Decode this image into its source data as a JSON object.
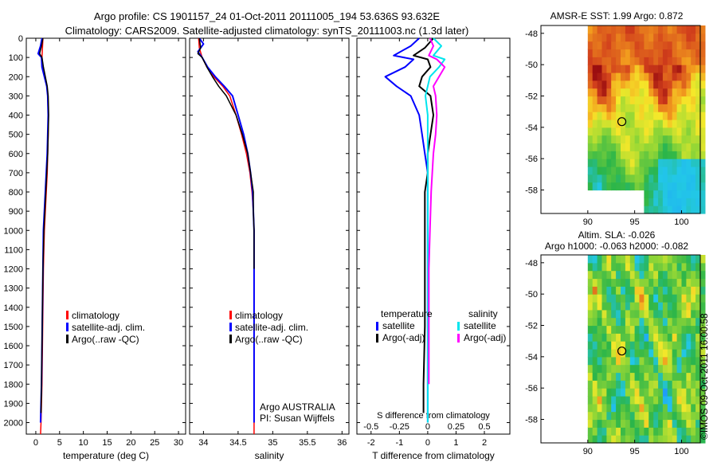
{
  "header": {
    "title_line1": "Argo profile: CS 1901157_24 01-Oct-2011 20111005_194 53.636S 93.632E",
    "title_line2": "Climatology: CARS2009. Satellite-adjusted climatology: synTS_20111003.nc (1.3d later)"
  },
  "colors": {
    "climatology": "#ff0000",
    "satellite_clim": "#0000ff",
    "argo": "#000000",
    "sal_satellite": "#00e5ee",
    "sal_argo": "#ff00ff"
  },
  "chart_data": [
    {
      "id": "temperature",
      "type": "line",
      "xlabel": "temperature (deg C)",
      "ylabel": "",
      "xlim": [
        -2,
        31.5
      ],
      "ylim": [
        2060,
        0
      ],
      "xticks": [
        0,
        5,
        10,
        15,
        20,
        25,
        30
      ],
      "yticks": [
        0,
        100,
        200,
        300,
        400,
        500,
        600,
        700,
        800,
        900,
        1000,
        1100,
        1200,
        1300,
        1400,
        1500,
        1600,
        1700,
        1800,
        1900,
        2000
      ],
      "legend": [
        "climatology",
        "satellite-adj. clim.",
        "Argo(..raw -QC)"
      ],
      "series": [
        {
          "name": "climatology",
          "color": "#ff0000",
          "width": 1.5,
          "x": [
            1.5,
            1.4,
            1.3,
            1.5,
            1.9,
            2.3,
            2.5,
            2.6,
            2.6,
            2.5,
            2.4,
            2.2,
            2.0,
            1.8,
            1.6,
            1.5,
            1.4,
            1.3,
            1.2,
            1.1,
            1.0
          ],
          "y": [
            0,
            50,
            100,
            150,
            200,
            250,
            300,
            400,
            500,
            600,
            700,
            800,
            900,
            1000,
            1200,
            1400,
            1600,
            1800,
            1900,
            2000,
            2060
          ]
        },
        {
          "name": "satellite-adj. clim.",
          "color": "#0000ff",
          "width": 2,
          "x": [
            1.3,
            1.0,
            0.5,
            1.2,
            1.3,
            1.8,
            2.3,
            2.5,
            2.6,
            2.5,
            2.4,
            2.2,
            2.0,
            1.8,
            1.6,
            1.5,
            1.4,
            1.3,
            1.2,
            1.1,
            1.0
          ],
          "y": [
            0,
            40,
            80,
            100,
            150,
            200,
            250,
            300,
            400,
            500,
            600,
            700,
            800,
            900,
            1000,
            1200,
            1400,
            1600,
            1800,
            1900,
            2000
          ]
        },
        {
          "name": "Argo(..raw -QC)",
          "color": "#000000",
          "width": 1.5,
          "x": [
            1.5,
            1.2,
            0.8,
            1.3,
            1.6,
            2.0,
            2.4,
            2.6,
            2.7,
            2.6,
            2.5,
            2.3,
            2.1,
            1.9,
            1.7,
            1.5,
            1.4,
            1.3,
            1.2,
            1.1
          ],
          "y": [
            0,
            40,
            80,
            100,
            150,
            200,
            250,
            300,
            400,
            500,
            600,
            700,
            800,
            900,
            1000,
            1200,
            1400,
            1600,
            1800,
            1950
          ]
        }
      ]
    },
    {
      "id": "salinity",
      "type": "line",
      "xlabel": "salinity",
      "ylabel": "",
      "xlim": [
        33.8,
        36.1
      ],
      "ylim": [
        2060,
        0
      ],
      "xticks": [
        34,
        34.5,
        35,
        35.5,
        36
      ],
      "xticklabels": [
        "34",
        "34.5",
        "35",
        "35.5",
        "36"
      ],
      "yticks": [
        0,
        100,
        200,
        300,
        400,
        500,
        600,
        700,
        800,
        900,
        1000,
        1100,
        1200,
        1300,
        1400,
        1500,
        1600,
        1700,
        1800,
        1900,
        2000
      ],
      "legend": [
        "climatology",
        "satellite-adj. clim.",
        "Argo(..raw -QC)"
      ],
      "annotation": [
        "Argo AUSTRALIA",
        "PI: Susan Wijffels"
      ],
      "series": [
        {
          "name": "climatology",
          "color": "#ff0000",
          "width": 1.5,
          "x": [
            33.93,
            33.94,
            33.98,
            34.05,
            34.15,
            34.28,
            34.38,
            34.47,
            34.55,
            34.62,
            34.67,
            34.7,
            34.72,
            34.73,
            34.73,
            34.73,
            34.73,
            34.73,
            34.73
          ],
          "y": [
            0,
            50,
            100,
            150,
            200,
            250,
            300,
            400,
            500,
            600,
            700,
            800,
            900,
            1000,
            1200,
            1400,
            1600,
            1800,
            2060
          ]
        },
        {
          "name": "satellite-adj. clim.",
          "color": "#0000ff",
          "width": 2,
          "x": [
            33.94,
            34.0,
            33.92,
            33.98,
            34.06,
            34.17,
            34.3,
            34.42,
            34.5,
            34.58,
            34.64,
            34.68,
            34.71,
            34.72,
            34.73,
            34.73,
            34.73,
            34.73,
            34.73
          ],
          "y": [
            0,
            30,
            70,
            100,
            150,
            200,
            250,
            300,
            400,
            500,
            600,
            700,
            800,
            900,
            1000,
            1200,
            1400,
            1600,
            2000
          ]
        },
        {
          "name": "Argo(..raw -QC)",
          "color": "#000000",
          "width": 1.5,
          "x": [
            33.94,
            33.96,
            33.92,
            33.98,
            34.05,
            34.13,
            34.22,
            34.33,
            34.47,
            34.56,
            34.64,
            34.68,
            34.72,
            34.72,
            34.73,
            34.73
          ],
          "y": [
            0,
            50,
            80,
            100,
            150,
            200,
            250,
            300,
            400,
            500,
            600,
            700,
            800,
            900,
            1000,
            1200
          ]
        }
      ]
    },
    {
      "id": "differences",
      "type": "line",
      "xlabel": "T difference from climatology",
      "xlabel_top": "S difference from climatology",
      "xlim": [
        -2.5,
        2.9
      ],
      "ylim": [
        2060,
        0
      ],
      "xticks": [
        -2,
        -1,
        0,
        1,
        2
      ],
      "xticks_top": [
        -0.5,
        -0.25,
        0,
        0.25,
        0.5
      ],
      "xticks_top_labels": [
        "-0.5",
        "-0.25",
        "0",
        "0.25",
        "0.5"
      ],
      "yticks": [
        0,
        100,
        200,
        300,
        400,
        500,
        600,
        700,
        800,
        900,
        1000,
        1100,
        1200,
        1300,
        1400,
        1500,
        1600,
        1700,
        1800,
        1900,
        2000
      ],
      "legend": {
        "temperature_title": "temperature",
        "salinity_title": "salinity",
        "temperature": [
          "satellite",
          "Argo(-adj)"
        ],
        "salinity": [
          "satellite",
          "Argo(-adj)"
        ]
      },
      "series": [
        {
          "name": "T satellite",
          "color": "#0000ff",
          "width": 2,
          "x": [
            -0.3,
            -0.6,
            -1.2,
            -0.5,
            -0.8,
            -1.5,
            -1.1,
            -0.6,
            -0.3,
            -0.2,
            -0.1,
            0,
            0,
            0,
            0,
            0,
            0,
            0
          ],
          "y": [
            0,
            40,
            90,
            110,
            150,
            200,
            250,
            300,
            400,
            500,
            600,
            700,
            800,
            1000,
            1200,
            1500,
            1800,
            2000
          ]
        },
        {
          "name": "T Argo(-adj)",
          "color": "#000000",
          "width": 2,
          "x": [
            0.2,
            -0.1,
            -0.5,
            0,
            0.1,
            -0.2,
            -0.3,
            0.1,
            0.2,
            0.1,
            0,
            0,
            -0.1,
            -0.1,
            -0.1,
            -0.1,
            -0.15,
            -0.15
          ],
          "y": [
            0,
            50,
            90,
            110,
            150,
            200,
            250,
            300,
            400,
            500,
            600,
            700,
            800,
            1000,
            1200,
            1500,
            1800,
            1950
          ]
        },
        {
          "name": "S satellite",
          "color": "#00e5ee",
          "width": 2,
          "x": [
            0.05,
            0.12,
            0.05,
            0.15,
            0.1,
            0.02,
            0,
            -0.02,
            0,
            0,
            0,
            0,
            0,
            0,
            0,
            0,
            0,
            0
          ],
          "y": [
            0,
            40,
            90,
            110,
            150,
            200,
            250,
            300,
            400,
            500,
            600,
            700,
            800,
            1000,
            1200,
            1500,
            1800,
            2000
          ]
        },
        {
          "name": "S Argo(-adj)",
          "color": "#ff00ff",
          "width": 2,
          "x": [
            0.02,
            0.05,
            0.01,
            0.08,
            0.15,
            0.1,
            0.05,
            0.07,
            0.08,
            0.07,
            0.05,
            0.04,
            0.03,
            0.02,
            0.01,
            0.01,
            0.01
          ],
          "y": [
            0,
            40,
            90,
            110,
            150,
            200,
            250,
            300,
            400,
            500,
            600,
            700,
            800,
            1000,
            1200,
            1500,
            1800
          ]
        }
      ]
    },
    {
      "id": "sst_map",
      "type": "heatmap",
      "title": "AMSR-E SST: 1.99 Argo: 0.872",
      "xlim": [
        85,
        102
      ],
      "ylim": [
        -59.5,
        -47.5
      ],
      "xticks": [
        90,
        95,
        100
      ],
      "yticks": [
        -48,
        -50,
        -52,
        -54,
        -56,
        -58
      ],
      "marker": {
        "lon": 93.632,
        "lat": -53.636
      }
    },
    {
      "id": "sla_map",
      "type": "heatmap",
      "title_line1": "Altim. SLA: -0.026",
      "title_line2": "Argo h1000: -0.063 h2000: -0.082",
      "xlim": [
        85,
        102
      ],
      "ylim": [
        -59.5,
        -47.5
      ],
      "xticks": [
        90,
        95,
        100
      ],
      "yticks": [
        -48,
        -50,
        -52,
        -54,
        -56,
        -58
      ],
      "marker": {
        "lon": 93.632,
        "lat": -53.636
      }
    }
  ],
  "footer": {
    "timestamp": "©IMOS 09-Oct-2011 16:00:58"
  }
}
